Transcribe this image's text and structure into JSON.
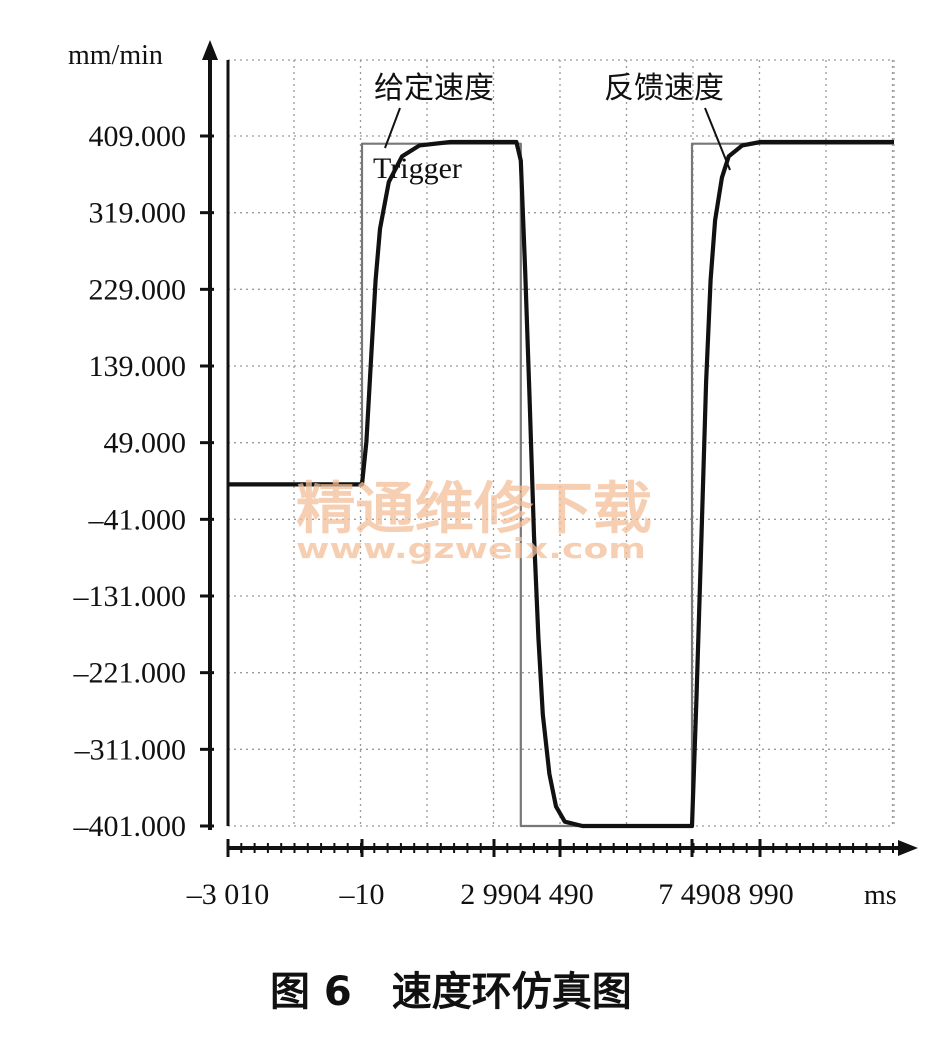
{
  "chart_data": {
    "type": "line",
    "ylabel": "mm/min",
    "xlabel": "ms",
    "y_ticks": [
      "409.000",
      "319.000",
      "229.000",
      "139.000",
      "49.000",
      "–41.000",
      "–131.000",
      "–221.000",
      "–311.000",
      "–401.000"
    ],
    "y_tick_values": [
      409,
      319,
      229,
      139,
      49,
      -41,
      -131,
      -221,
      -311,
      -401
    ],
    "x_ticks": [
      "–3 010",
      "–10",
      "2 990",
      "4 490",
      "7 490",
      "8 990"
    ],
    "x_tick_values": [
      -3010,
      -10,
      2990,
      4490,
      7490,
      8990
    ],
    "xlim": [
      -3010,
      12000
    ],
    "ylim": [
      -401,
      409
    ],
    "grid": true,
    "series": [
      {
        "name": "给定速度",
        "points": [
          [
            -3010,
            0
          ],
          [
            -10,
            0
          ],
          [
            -10,
            400
          ],
          [
            3600,
            400
          ],
          [
            3600,
            -401
          ],
          [
            7490,
            -401
          ],
          [
            7490,
            400
          ],
          [
            12000,
            400
          ]
        ]
      },
      {
        "name": "反馈速度",
        "points": [
          [
            -3010,
            0
          ],
          [
            -10,
            0
          ],
          [
            90,
            50
          ],
          [
            200,
            150
          ],
          [
            300,
            240
          ],
          [
            400,
            300
          ],
          [
            600,
            355
          ],
          [
            900,
            385
          ],
          [
            1300,
            398
          ],
          [
            2000,
            402
          ],
          [
            3500,
            402
          ],
          [
            3600,
            380
          ],
          [
            3700,
            250
          ],
          [
            3800,
            100
          ],
          [
            3900,
            -60
          ],
          [
            4000,
            -180
          ],
          [
            4100,
            -270
          ],
          [
            4250,
            -340
          ],
          [
            4400,
            -378
          ],
          [
            4600,
            -396
          ],
          [
            5000,
            -401
          ],
          [
            7490,
            -401
          ],
          [
            7590,
            -250
          ],
          [
            7700,
            -60
          ],
          [
            7800,
            120
          ],
          [
            7900,
            240
          ],
          [
            8000,
            310
          ],
          [
            8150,
            360
          ],
          [
            8300,
            385
          ],
          [
            8600,
            398
          ],
          [
            9000,
            402
          ],
          [
            12000,
            402
          ]
        ]
      }
    ],
    "annotations": {
      "given_speed": "给定速度",
      "feedback_speed": "反馈速度",
      "trigger": "Trigger"
    }
  },
  "caption": "图 6　速度环仿真图",
  "watermark": {
    "text": "精通维修下载",
    "url": "www.gzweix.com"
  },
  "colors": {
    "axis": "#111111",
    "grid": "#9a9a9a",
    "watermark": "#f4c09a"
  }
}
